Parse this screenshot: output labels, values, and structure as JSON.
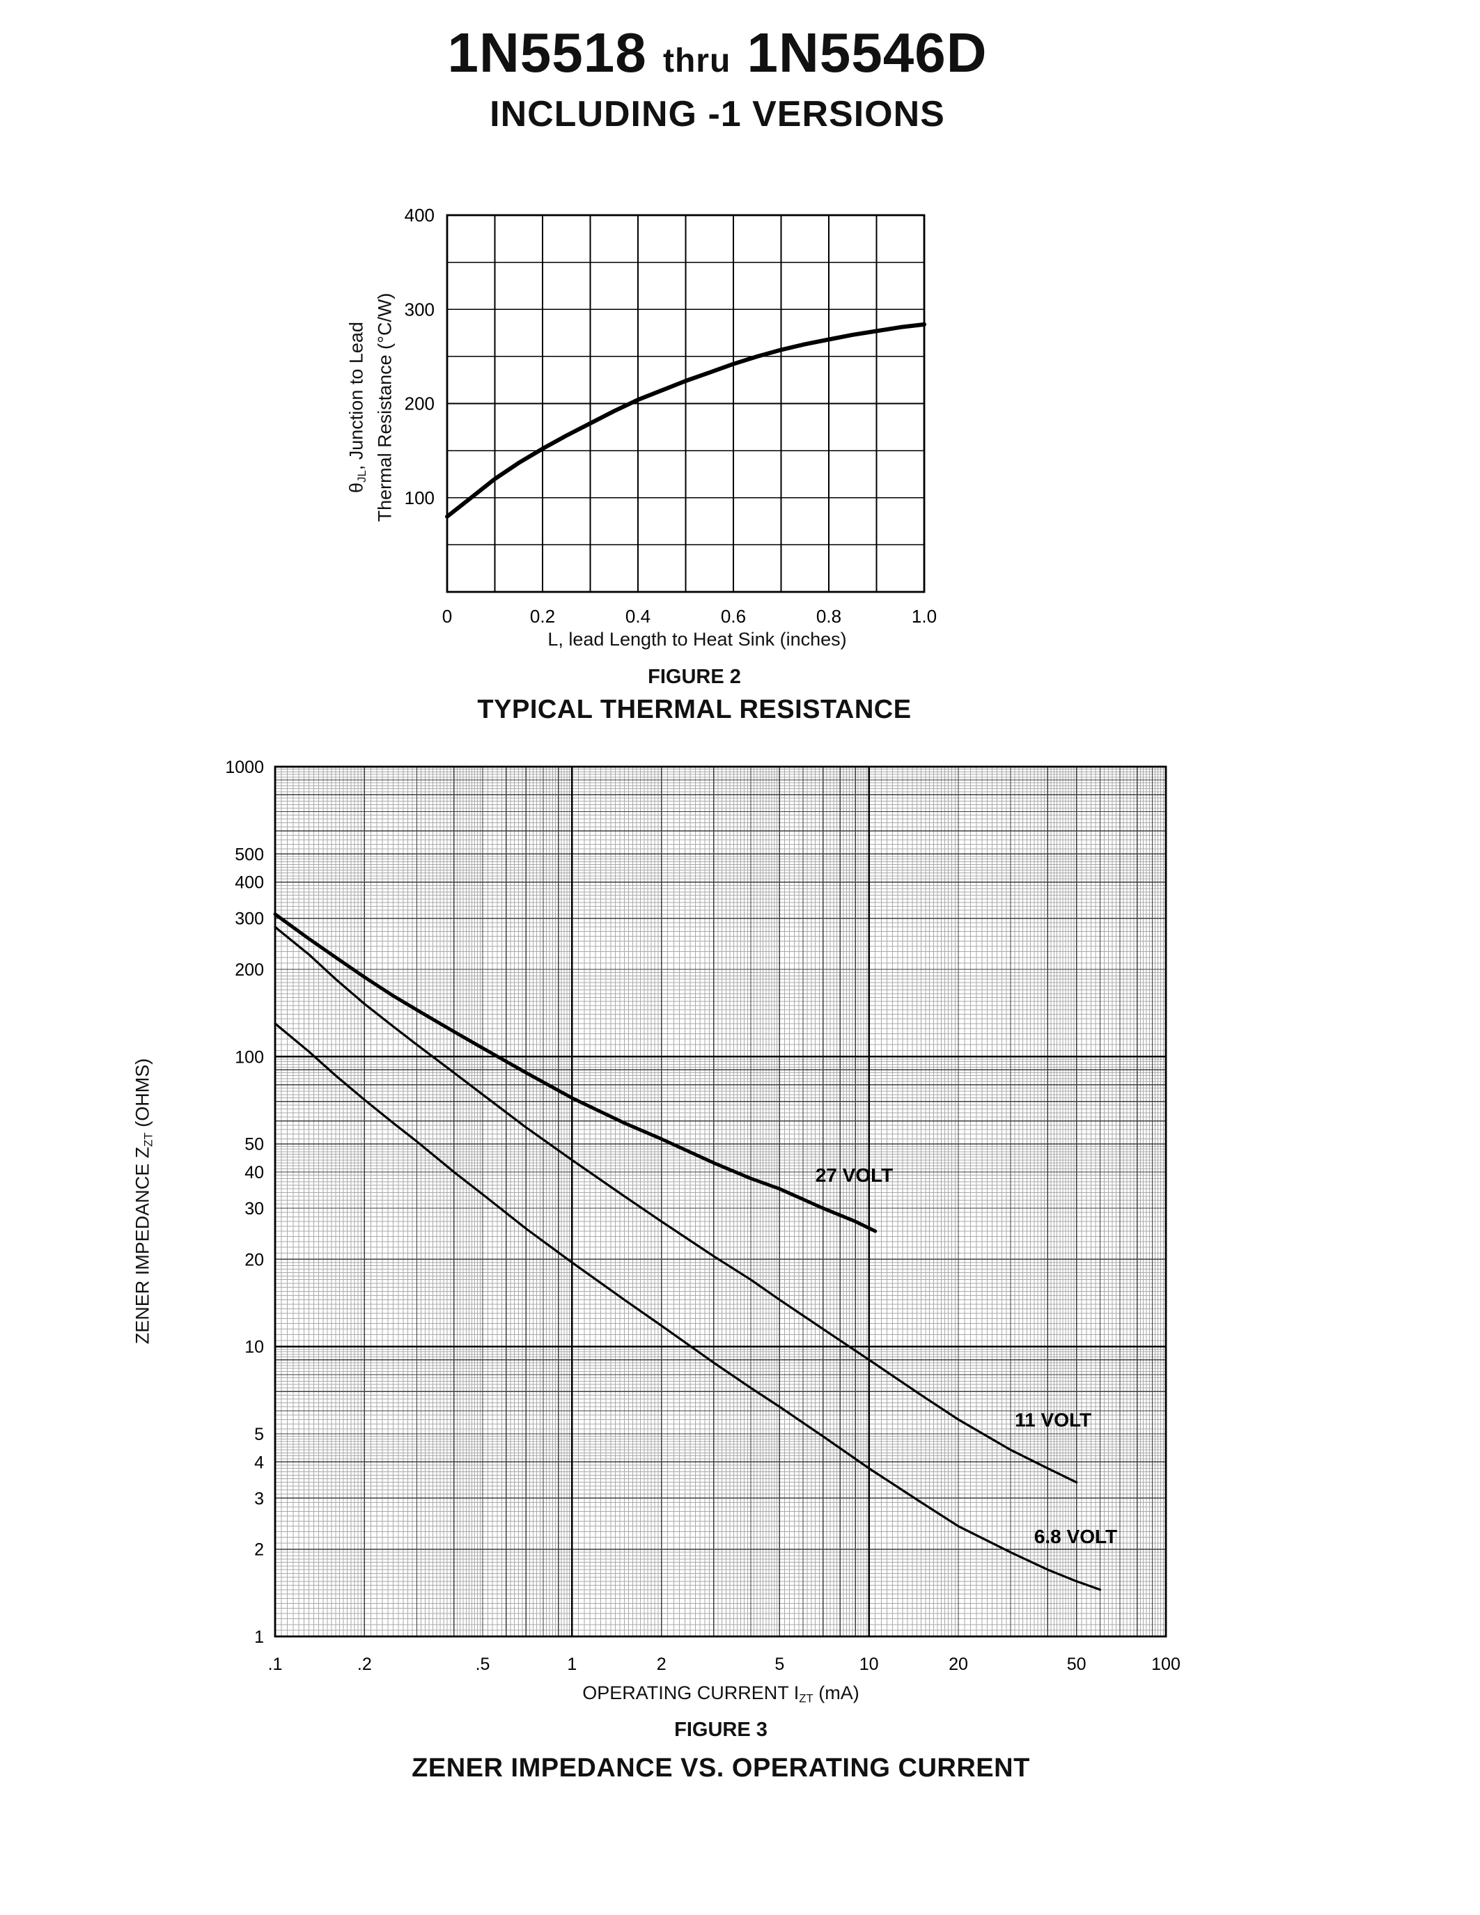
{
  "page": {
    "title_part1": "1N5518",
    "title_thru": "thru",
    "title_part2": "1N5546D",
    "subtitle": "INCLUDING -1 VERSIONS"
  },
  "colors": {
    "ink": "#000000",
    "paper": "#ffffff",
    "grid_fine": "#a9a9a9",
    "grid_minor": "#3c3c3c"
  },
  "figure2": {
    "caption": "FIGURE 2",
    "title": "TYPICAL THERMAL RESISTANCE",
    "xlabel": "L, lead Length to Heat Sink (inches)",
    "ylabel_line1_pre": "θ",
    "ylabel_line1_sub": "JL",
    "ylabel_line1_post": ", Junction to Lead",
    "ylabel_line2": "Thermal Resistance (°C/W)"
  },
  "figure3": {
    "caption": "FIGURE 3",
    "title": "ZENER IMPEDANCE VS. OPERATING CURRENT",
    "xlabel_pre": "OPERATING CURRENT I",
    "xlabel_sub": "ZT",
    "xlabel_post": " (mA)",
    "ylabel_pre": "ZENER IMPEDANCE Z",
    "ylabel_sub": "ZT",
    "ylabel_post": " (OHMS)"
  },
  "chart_data": [
    {
      "id": "figure2",
      "type": "line",
      "title": "TYPICAL THERMAL RESISTANCE",
      "xlabel": "L, lead Length to Heat Sink (inches)",
      "ylabel": "θJL, Junction to Lead Thermal Resistance (°C/W)",
      "x_scale": "linear",
      "y_scale": "linear",
      "xlim": [
        0,
        1.0
      ],
      "ylim": [
        0,
        400
      ],
      "grid": true,
      "grid_x_step": 0.1,
      "grid_y_step": 50,
      "x_ticks": [
        0,
        0.2,
        0.4,
        0.6,
        0.8,
        1.0
      ],
      "x_tick_labels": [
        "0",
        "0.2",
        "0.4",
        "0.6",
        "0.8",
        "1.0"
      ],
      "y_ticks": [
        100,
        200,
        300,
        400
      ],
      "y_tick_labels": [
        "100",
        "200",
        "300",
        "400"
      ],
      "series": [
        {
          "name": "thermal resistance",
          "x": [
            0,
            0.05,
            0.1,
            0.15,
            0.2,
            0.25,
            0.3,
            0.35,
            0.4,
            0.45,
            0.5,
            0.55,
            0.6,
            0.65,
            0.7,
            0.75,
            0.8,
            0.85,
            0.9,
            0.95,
            1.0
          ],
          "y": [
            80,
            100,
            120,
            137,
            152,
            166,
            179,
            192,
            204,
            214,
            224,
            233,
            242,
            250,
            257,
            263,
            268,
            273,
            277,
            281,
            284
          ]
        }
      ]
    },
    {
      "id": "figure3",
      "type": "line",
      "title": "ZENER IMPEDANCE VS. OPERATING CURRENT",
      "xlabel": "OPERATING CURRENT IZT (mA)",
      "ylabel": "ZENER IMPEDANCE ZZT (OHMS)",
      "x_scale": "log",
      "y_scale": "log",
      "xlim": [
        0.1,
        100
      ],
      "ylim": [
        1,
        1000
      ],
      "grid": true,
      "x_ticks": [
        0.1,
        0.2,
        0.5,
        1,
        2,
        5,
        10,
        20,
        50,
        100
      ],
      "x_tick_labels": [
        ".1",
        ".2",
        ".5",
        "1",
        "2",
        "5",
        "10",
        "20",
        "50",
        "100"
      ],
      "y_ticks": [
        1,
        2,
        3,
        4,
        5,
        10,
        20,
        30,
        40,
        50,
        100,
        200,
        300,
        400,
        500,
        1000
      ],
      "y_tick_labels": [
        "1",
        "2",
        "3",
        "4",
        "5",
        "10",
        "20",
        "30",
        "40",
        "50",
        "100",
        "200",
        "300",
        "400",
        "500",
        "1000"
      ],
      "series": [
        {
          "name": "27 VOLT",
          "label_at": [
            6.6,
            37
          ],
          "x": [
            0.1,
            0.13,
            0.16,
            0.2,
            0.25,
            0.3,
            0.4,
            0.5,
            0.7,
            1,
            1.5,
            2,
            3,
            4,
            5,
            7,
            9,
            10.5
          ],
          "y": [
            310,
            255,
            220,
            188,
            162,
            145,
            122,
            107,
            88,
            72,
            59,
            52,
            43,
            38,
            35,
            30,
            27,
            25
          ]
        },
        {
          "name": "11 VOLT",
          "label_at": [
            31,
            5.3
          ],
          "x": [
            0.1,
            0.13,
            0.16,
            0.2,
            0.25,
            0.3,
            0.4,
            0.5,
            0.7,
            1,
            1.5,
            2,
            3,
            4,
            5,
            7,
            10,
            15,
            20,
            30,
            40,
            50
          ],
          "y": [
            280,
            225,
            185,
            152,
            127,
            110,
            88,
            74,
            57,
            44,
            33,
            27,
            20.5,
            17,
            14.5,
            11.5,
            9,
            6.8,
            5.6,
            4.4,
            3.8,
            3.4
          ]
        },
        {
          "name": "6.8 VOLT",
          "label_at": [
            36,
            2.1
          ],
          "x": [
            0.1,
            0.13,
            0.16,
            0.2,
            0.25,
            0.3,
            0.4,
            0.5,
            0.7,
            1,
            1.5,
            2,
            3,
            4,
            5,
            7,
            10,
            15,
            20,
            30,
            40,
            50,
            60
          ],
          "y": [
            130,
            104,
            86,
            71,
            59,
            51,
            40,
            33.5,
            25.5,
            19.5,
            14.5,
            11.8,
            8.8,
            7.2,
            6.2,
            4.9,
            3.8,
            2.9,
            2.4,
            1.95,
            1.7,
            1.55,
            1.45
          ]
        }
      ]
    }
  ]
}
